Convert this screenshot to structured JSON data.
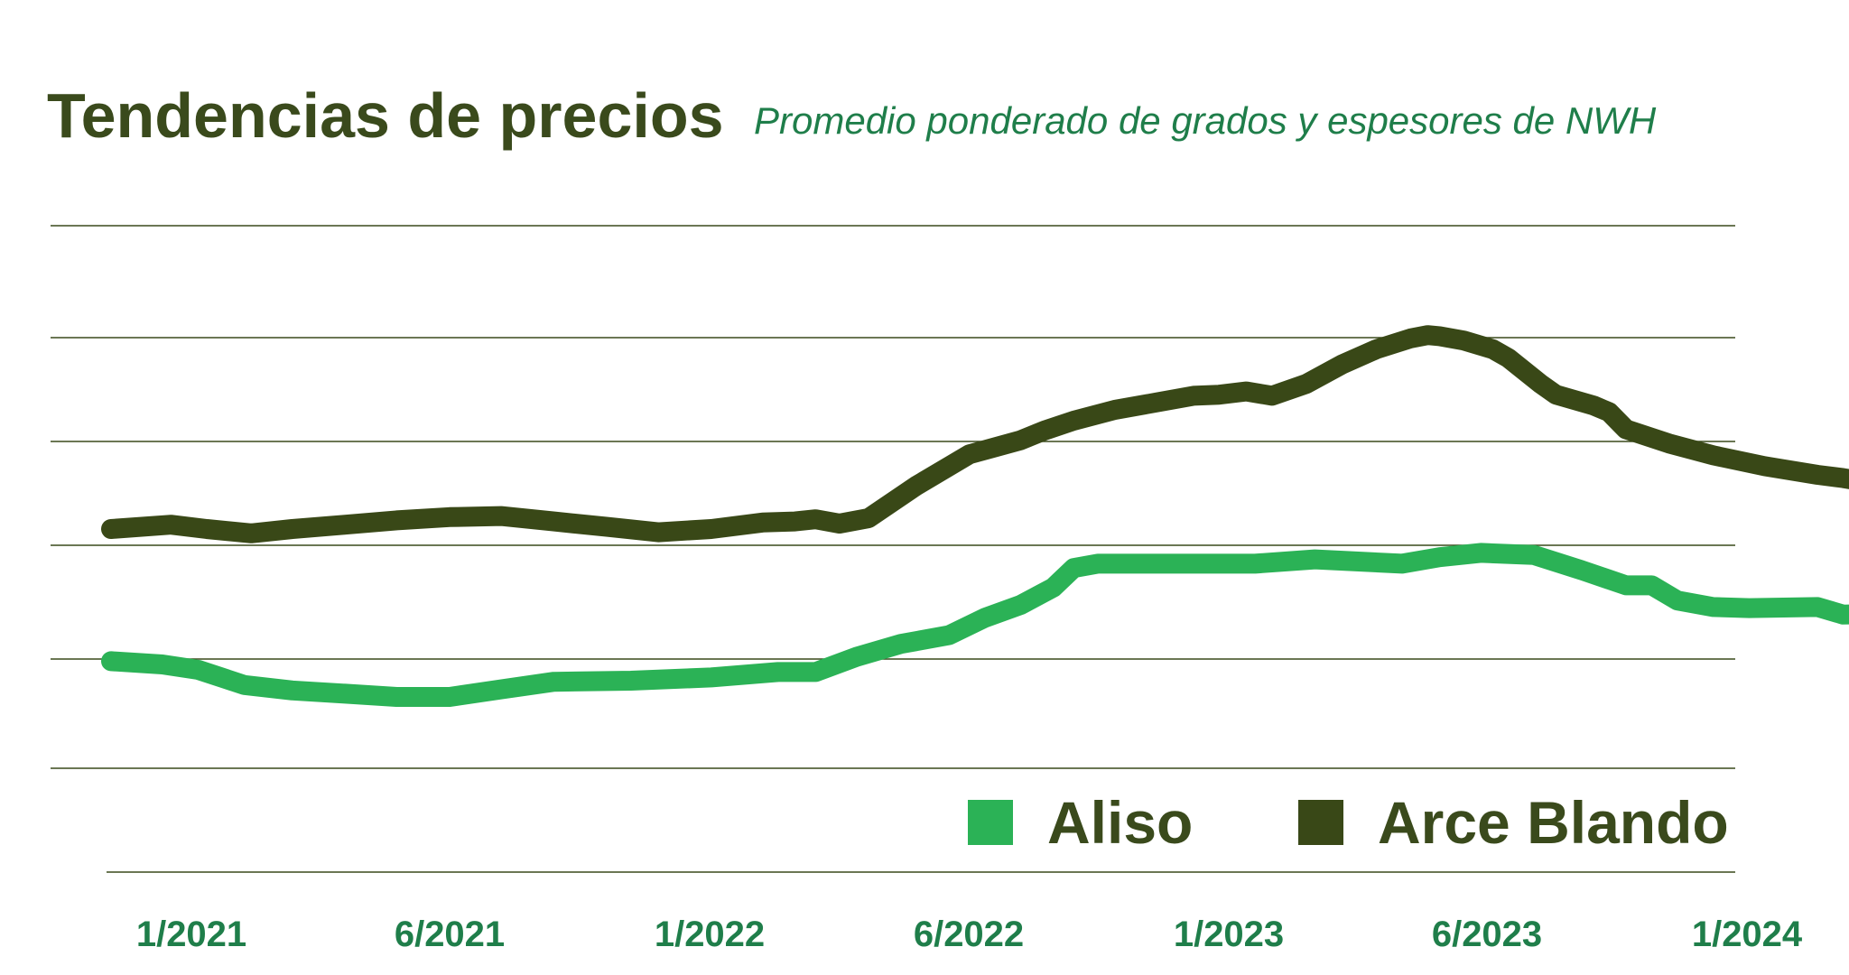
{
  "chart_data": {
    "type": "line",
    "title": "Tendencias de precios",
    "subtitle": "Promedio ponderado de grados y espesores de NWH",
    "xlabel": "",
    "ylabel": "",
    "x_tick_labels": [
      "1/2021",
      "6/2021",
      "1/2022",
      "6/2022",
      "1/2023",
      "6/2023",
      "1/2024"
    ],
    "y_gridlines": 7,
    "y_ticks_shown": false,
    "legend_position": "bottom-right",
    "series": [
      {
        "name": "Aliso",
        "color": "#2bb256",
        "points": [
          [
            "2020-11-15",
            0.99
          ],
          [
            "2020-12-15",
            0.975
          ],
          [
            "2021-01-05",
            0.95
          ],
          [
            "2021-02-01",
            0.88
          ],
          [
            "2021-03-01",
            0.855
          ],
          [
            "2021-04-01",
            0.84
          ],
          [
            "2021-05-01",
            0.825
          ],
          [
            "2021-06-01",
            0.825
          ],
          [
            "2021-07-01",
            0.86
          ],
          [
            "2021-08-01",
            0.895
          ],
          [
            "2021-09-15",
            0.9
          ],
          [
            "2021-11-01",
            0.915
          ],
          [
            "2021-12-10",
            0.94
          ],
          [
            "2022-01-01",
            0.94
          ],
          [
            "2022-01-25",
            1.01
          ],
          [
            "2022-02-20",
            1.07
          ],
          [
            "2022-03-20",
            1.11
          ],
          [
            "2022-04-10",
            1.19
          ],
          [
            "2022-05-01",
            1.25
          ],
          [
            "2022-05-20",
            1.33
          ],
          [
            "2022-06-01",
            1.42
          ],
          [
            "2022-06-15",
            1.44
          ],
          [
            "2022-08-01",
            1.44
          ],
          [
            "2022-09-15",
            1.44
          ],
          [
            "2022-10-20",
            1.46
          ],
          [
            "2022-12-10",
            1.44
          ],
          [
            "2023-01-01",
            1.47
          ],
          [
            "2023-01-25",
            1.49
          ],
          [
            "2023-02-25",
            1.48
          ],
          [
            "2023-03-25",
            1.41
          ],
          [
            "2023-04-20",
            1.34
          ],
          [
            "2023-05-05",
            1.34
          ],
          [
            "2023-05-20",
            1.27
          ],
          [
            "2023-06-10",
            1.24
          ],
          [
            "2023-07-01",
            1.235
          ],
          [
            "2023-08-10",
            1.24
          ],
          [
            "2023-08-25",
            1.205
          ],
          [
            "2023-09-20",
            1.21
          ],
          [
            "2023-10-25",
            1.19
          ],
          [
            "2023-11-15",
            1.18
          ],
          [
            "2023-12-15",
            1.18
          ],
          [
            "2023-12-25",
            1.19
          ],
          [
            "2024-01-05",
            1.235
          ],
          [
            "2024-01-20",
            1.2
          ]
        ]
      },
      {
        "name": "Arce Blando",
        "color": "#394817",
        "points": [
          [
            "2020-11-15",
            1.6
          ],
          [
            "2020-12-20",
            1.62
          ],
          [
            "2021-01-10",
            1.6
          ],
          [
            "2021-02-05",
            1.58
          ],
          [
            "2021-03-01",
            1.6
          ],
          [
            "2021-04-01",
            1.62
          ],
          [
            "2021-05-01",
            1.64
          ],
          [
            "2021-06-01",
            1.655
          ],
          [
            "2021-07-01",
            1.66
          ],
          [
            "2021-08-01",
            1.635
          ],
          [
            "2021-09-01",
            1.61
          ],
          [
            "2021-10-01",
            1.585
          ],
          [
            "2021-11-01",
            1.6
          ],
          [
            "2021-12-01",
            1.63
          ],
          [
            "2021-12-20",
            1.635
          ],
          [
            "2022-01-01",
            1.645
          ],
          [
            "2022-01-15",
            1.625
          ],
          [
            "2022-02-01",
            1.65
          ],
          [
            "2022-03-01",
            1.8
          ],
          [
            "2022-04-01",
            1.945
          ],
          [
            "2022-05-01",
            2.01
          ],
          [
            "2022-05-15",
            2.055
          ],
          [
            "2022-06-01",
            2.1
          ],
          [
            "2022-06-25",
            2.15
          ],
          [
            "2022-07-20",
            2.185
          ],
          [
            "2022-08-10",
            2.215
          ],
          [
            "2022-08-25",
            2.22
          ],
          [
            "2022-09-10",
            2.235
          ],
          [
            "2022-09-25",
            2.215
          ],
          [
            "2022-10-15",
            2.27
          ],
          [
            "2022-11-05",
            2.36
          ],
          [
            "2022-11-25",
            2.43
          ],
          [
            "2022-12-15",
            2.48
          ],
          [
            "2022-12-25",
            2.495
          ],
          [
            "2023-01-01",
            2.49
          ],
          [
            "2023-01-15",
            2.47
          ],
          [
            "2023-02-01",
            2.43
          ],
          [
            "2023-02-10",
            2.39
          ],
          [
            "2023-03-01",
            2.27
          ],
          [
            "2023-03-10",
            2.22
          ],
          [
            "2023-04-01",
            2.17
          ],
          [
            "2023-04-10",
            2.14
          ],
          [
            "2023-04-20",
            2.06
          ],
          [
            "2023-05-15",
            1.995
          ],
          [
            "2023-06-10",
            1.94
          ],
          [
            "2023-07-10",
            1.89
          ],
          [
            "2023-08-10",
            1.85
          ],
          [
            "2023-08-25",
            1.835
          ],
          [
            "2023-09-20",
            1.8
          ],
          [
            "2023-10-20",
            1.77
          ],
          [
            "2023-11-10",
            1.755
          ],
          [
            "2023-12-25",
            1.75
          ],
          [
            "2024-01-20",
            1.775
          ]
        ]
      }
    ]
  }
}
